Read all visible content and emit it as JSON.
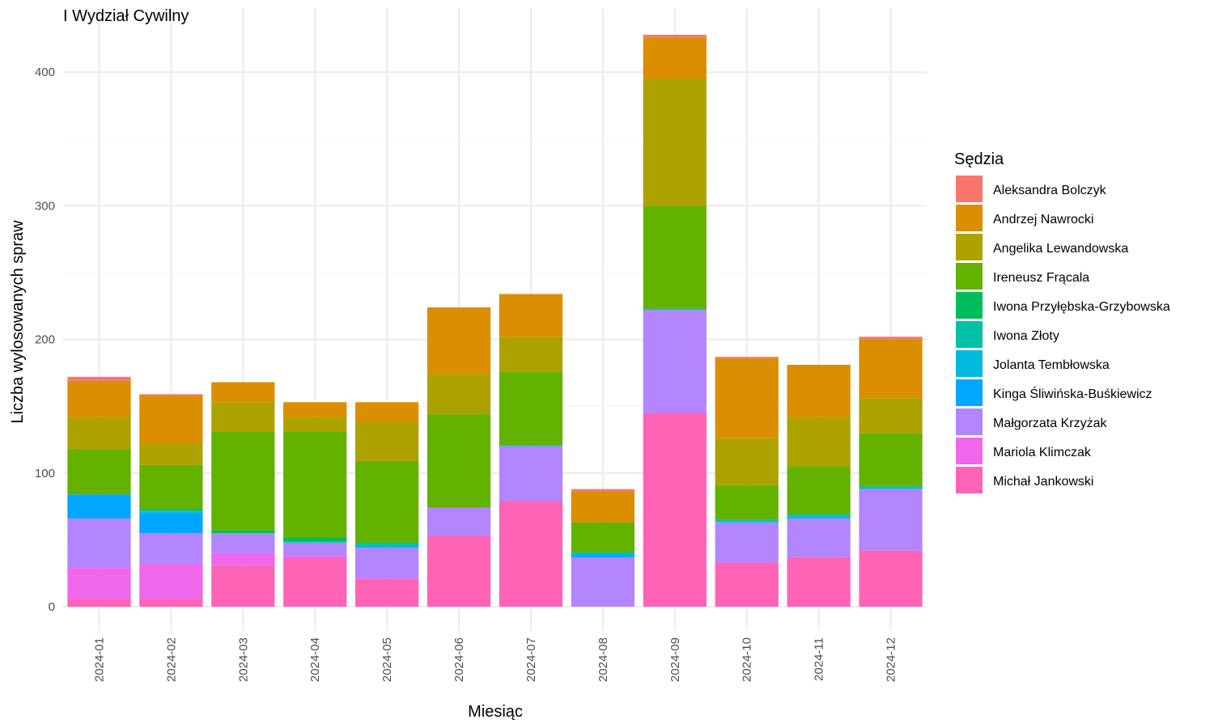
{
  "chart_data": {
    "type": "bar",
    "stacked": true,
    "title": "I Wydział Cywilny",
    "xlabel": "Miesiąc",
    "ylabel": "Liczba wylosowanych spraw",
    "ylim": [
      0,
      430
    ],
    "y_ticks": [
      0,
      100,
      200,
      300,
      400
    ],
    "grid": true,
    "legend_title": "Sędzia",
    "legend_position": "right",
    "categories": [
      "2024-01",
      "2024-02",
      "2024-03",
      "2024-04",
      "2024-05",
      "2024-06",
      "2024-07",
      "2024-08",
      "2024-09",
      "2024-10",
      "2024-11",
      "2024-12"
    ],
    "series": [
      {
        "name": "Aleksandra Bolczyk",
        "color": "#F8766D",
        "values": [
          3,
          1,
          0,
          0,
          0,
          0,
          0,
          2,
          2,
          1,
          0,
          2
        ]
      },
      {
        "name": "Andrzej Nawrocki",
        "color": "#DB8E00",
        "values": [
          27,
          36,
          15,
          11,
          15,
          49,
          32,
          23,
          31,
          60,
          39,
          44
        ]
      },
      {
        "name": "Angelika Lewandowska",
        "color": "#AEA200",
        "values": [
          24,
          16,
          22,
          11,
          29,
          31,
          26,
          0,
          95,
          35,
          37,
          26
        ]
      },
      {
        "name": "Ireneusz Frącala",
        "color": "#64B200",
        "values": [
          34,
          33,
          74,
          79,
          61,
          70,
          55,
          22,
          77,
          26,
          36,
          40
        ]
      },
      {
        "name": "Iwona Przyłębska-Grzybowska",
        "color": "#00BD5C",
        "values": [
          0,
          1,
          2,
          3,
          1,
          0,
          0,
          1,
          0,
          0,
          0,
          0
        ]
      },
      {
        "name": "Iwona Złoty",
        "color": "#00C1A7",
        "values": [
          0,
          1,
          0,
          1,
          1,
          0,
          0,
          0,
          0,
          1,
          1,
          1
        ]
      },
      {
        "name": "Jolanta Tembłowska",
        "color": "#00BADE",
        "values": [
          0,
          1,
          0,
          0,
          2,
          0,
          1,
          1,
          1,
          1,
          2,
          1
        ]
      },
      {
        "name": "Kinga Śliwińska-Buśkiewicz",
        "color": "#00A6FF",
        "values": [
          18,
          15,
          0,
          0,
          0,
          0,
          0,
          2,
          0,
          0,
          0,
          0
        ]
      },
      {
        "name": "Małgorzata Krzyżak",
        "color": "#B385FF",
        "values": [
          37,
          23,
          15,
          10,
          23,
          21,
          41,
          37,
          77,
          30,
          29,
          46
        ]
      },
      {
        "name": "Mariola Klimczak",
        "color": "#EF67EB",
        "values": [
          23,
          26,
          9,
          2,
          0,
          0,
          0,
          0,
          0,
          0,
          0,
          0
        ]
      },
      {
        "name": "Michał Jankowski",
        "color": "#FF63B6",
        "values": [
          6,
          6,
          31,
          36,
          21,
          53,
          79,
          0,
          145,
          33,
          37,
          42
        ]
      }
    ]
  }
}
